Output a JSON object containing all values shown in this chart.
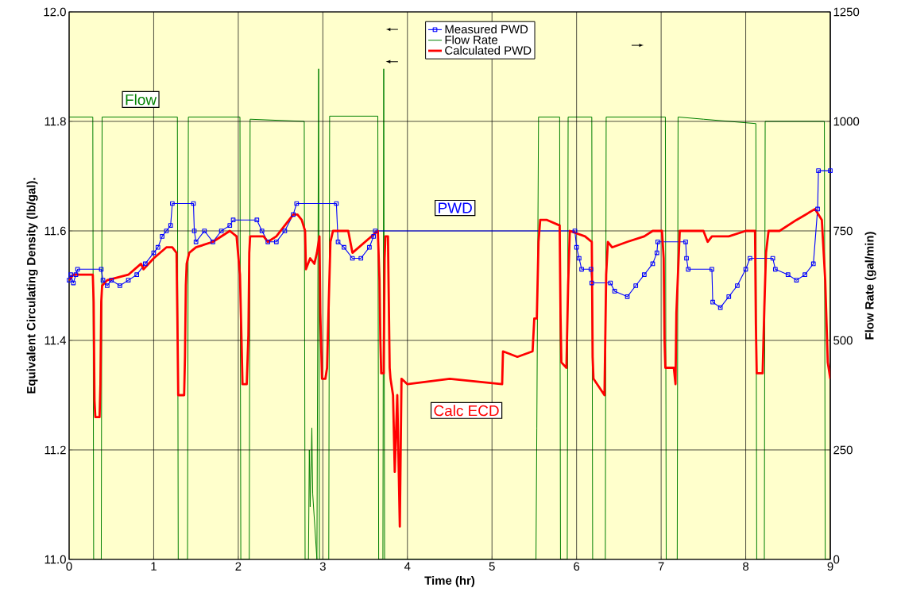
{
  "chart_data": {
    "type": "line",
    "xlabel": "Time (hr)",
    "ylabel": "Equivalent Circulating Density (lb/gal).",
    "y2label": "Flow Rate (gal/min)",
    "xlim": [
      0,
      9
    ],
    "xticks": [
      0,
      1,
      2,
      3,
      4,
      5,
      6,
      7,
      8,
      9
    ],
    "ylim": [
      11.0,
      12.0
    ],
    "yticks": [
      {
        "value": 11.0,
        "label": "11.0"
      },
      {
        "value": 11.2,
        "label": "11.2"
      },
      {
        "value": 11.4,
        "label": "11.4"
      },
      {
        "value": 11.6,
        "label": "11.6"
      },
      {
        "value": 11.8,
        "label": "11.8"
      },
      {
        "value": 12.0,
        "label": "12.0"
      }
    ],
    "y2lim": [
      0,
      1250
    ],
    "y2ticks": [
      0,
      250,
      500,
      750,
      1000,
      1250
    ],
    "grid": true,
    "legend": "top",
    "annotations": [
      "Flow",
      "PWD",
      "Calc ECD"
    ],
    "series": [
      {
        "name": "Measured PWD",
        "color": "#0000ff",
        "marker": "square",
        "x": [
          0,
          0.02,
          0.05,
          0.08,
          0.1,
          0.38,
          0.4,
          0.45,
          0.5,
          0.6,
          0.7,
          0.8,
          0.9,
          1.0,
          1.05,
          1.1,
          1.15,
          1.2,
          1.22,
          1.47,
          1.48,
          1.5,
          1.6,
          1.7,
          1.8,
          1.9,
          1.94,
          2.22,
          2.28,
          2.35,
          2.45,
          2.55,
          2.65,
          2.69,
          3.16,
          3.18,
          3.25,
          3.35,
          3.45,
          3.55,
          3.6,
          3.62,
          5.98,
          6.0,
          6.03,
          6.06,
          6.17,
          6.18,
          6.4,
          6.45,
          6.6,
          6.7,
          6.8,
          6.9,
          6.95,
          6.96,
          7.29,
          7.3,
          7.32,
          7.6,
          7.61,
          7.7,
          7.8,
          7.9,
          8.0,
          8.05,
          8.32,
          8.35,
          8.5,
          8.6,
          8.7,
          8.8,
          8.85,
          8.86,
          9.0
        ],
        "values": [
          11.51,
          11.52,
          11.505,
          11.52,
          11.53,
          11.53,
          11.51,
          11.5,
          11.51,
          11.5,
          11.51,
          11.52,
          11.54,
          11.56,
          11.57,
          11.59,
          11.6,
          11.61,
          11.65,
          11.65,
          11.6,
          11.58,
          11.6,
          11.58,
          11.6,
          11.61,
          11.62,
          11.62,
          11.6,
          11.58,
          11.58,
          11.6,
          11.63,
          11.65,
          11.65,
          11.58,
          11.57,
          11.55,
          11.55,
          11.57,
          11.59,
          11.6,
          11.6,
          11.57,
          11.55,
          11.53,
          11.53,
          11.505,
          11.505,
          11.49,
          11.48,
          11.5,
          11.52,
          11.54,
          11.56,
          11.58,
          11.58,
          11.55,
          11.53,
          11.53,
          11.47,
          11.46,
          11.48,
          11.5,
          11.53,
          11.55,
          11.55,
          11.53,
          11.52,
          11.51,
          11.52,
          11.54,
          11.64,
          11.71,
          11.71
        ]
      },
      {
        "name": "Flow Rate",
        "color": "#008000",
        "marker": "none",
        "axis": "y2",
        "x": [
          0,
          0.28,
          0.29,
          0.38,
          0.39,
          1.28,
          1.29,
          1.4,
          1.41,
          2.02,
          2.03,
          2.13,
          2.14,
          2.78,
          2.79,
          2.83,
          2.84,
          2.85,
          2.87,
          2.88,
          2.93,
          2.95,
          2.96,
          3.07,
          3.08,
          3.65,
          3.66,
          3.71,
          3.72,
          3.73,
          5.52,
          5.53,
          5.55,
          5.8,
          5.81,
          5.89,
          5.9,
          6.18,
          6.19,
          6.34,
          6.35,
          7.05,
          7.06,
          7.19,
          7.2,
          7.5,
          8.12,
          8.13,
          8.22,
          8.23,
          8.93,
          8.94,
          9.0
        ],
        "values": [
          1010,
          1010,
          0,
          0,
          1010,
          1010,
          0,
          0,
          1010,
          1010,
          0,
          0,
          1005,
          1000,
          0,
          0,
          250,
          120,
          300,
          150,
          0,
          1120,
          0,
          0,
          1012,
          1012,
          0,
          0,
          1120,
          0,
          0,
          300,
          1010,
          1010,
          0,
          0,
          1010,
          1010,
          0,
          0,
          1010,
          1010,
          0,
          0,
          1010,
          1005,
          995,
          0,
          0,
          1000,
          1000,
          0,
          0
        ]
      },
      {
        "name": "Calculated PWD",
        "color": "#ff0000",
        "marker": "none",
        "x": [
          0,
          0.05,
          0.28,
          0.29,
          0.3,
          0.31,
          0.36,
          0.37,
          0.38,
          0.39,
          0.45,
          0.7,
          0.85,
          0.88,
          1.0,
          1.15,
          1.22,
          1.27,
          1.28,
          1.29,
          1.36,
          1.37,
          1.38,
          1.39,
          1.42,
          1.5,
          1.7,
          1.9,
          1.98,
          2.02,
          2.04,
          2.05,
          2.1,
          2.12,
          2.13,
          2.14,
          2.3,
          2.35,
          2.45,
          2.65,
          2.7,
          2.75,
          2.79,
          2.8,
          2.85,
          2.9,
          2.93,
          2.96,
          2.97,
          2.99,
          3.03,
          3.05,
          3.07,
          3.09,
          3.12,
          3.3,
          3.35,
          3.65,
          3.67,
          3.68,
          3.69,
          3.72,
          3.73,
          3.74,
          3.77,
          3.79,
          3.8,
          3.83,
          3.85,
          3.88,
          3.91,
          3.93,
          4.0,
          4.5,
          5.12,
          5.13,
          5.3,
          5.48,
          5.5,
          5.53,
          5.55,
          5.57,
          5.65,
          5.8,
          5.81,
          5.82,
          5.88,
          5.9,
          5.92,
          6.1,
          6.18,
          6.19,
          6.2,
          6.33,
          6.35,
          6.37,
          6.42,
          6.6,
          6.8,
          6.9,
          7.01,
          7.03,
          7.04,
          7.05,
          7.15,
          7.17,
          7.18,
          7.22,
          7.5,
          7.55,
          7.6,
          7.8,
          8.0,
          8.11,
          8.12,
          8.13,
          8.2,
          8.22,
          8.24,
          8.27,
          8.4,
          8.6,
          8.82,
          8.9,
          8.94,
          8.97,
          9.0
        ],
        "values": [
          11.51,
          11.52,
          11.52,
          11.47,
          11.29,
          11.26,
          11.26,
          11.32,
          11.47,
          11.5,
          11.51,
          11.52,
          11.54,
          11.53,
          11.55,
          11.57,
          11.57,
          11.56,
          11.44,
          11.3,
          11.3,
          11.37,
          11.5,
          11.54,
          11.56,
          11.57,
          11.58,
          11.6,
          11.59,
          11.52,
          11.39,
          11.32,
          11.32,
          11.41,
          11.56,
          11.59,
          11.59,
          11.58,
          11.59,
          11.63,
          11.63,
          11.62,
          11.6,
          11.53,
          11.55,
          11.54,
          11.56,
          11.59,
          11.45,
          11.33,
          11.33,
          11.35,
          11.47,
          11.58,
          11.6,
          11.6,
          11.56,
          11.6,
          11.51,
          11.4,
          11.34,
          11.34,
          11.55,
          11.59,
          11.59,
          11.35,
          11.33,
          11.3,
          11.16,
          11.3,
          11.06,
          11.33,
          11.32,
          11.33,
          11.32,
          11.38,
          11.37,
          11.38,
          11.44,
          11.44,
          11.58,
          11.62,
          11.62,
          11.61,
          11.45,
          11.36,
          11.35,
          11.5,
          11.6,
          11.59,
          11.58,
          11.37,
          11.33,
          11.3,
          11.52,
          11.58,
          11.57,
          11.58,
          11.59,
          11.6,
          11.6,
          11.55,
          11.4,
          11.35,
          11.35,
          11.32,
          11.45,
          11.6,
          11.6,
          11.58,
          11.59,
          11.59,
          11.6,
          11.6,
          11.43,
          11.34,
          11.34,
          11.46,
          11.56,
          11.6,
          11.6,
          11.62,
          11.64,
          11.62,
          11.51,
          11.36,
          11.33
        ]
      }
    ]
  }
}
